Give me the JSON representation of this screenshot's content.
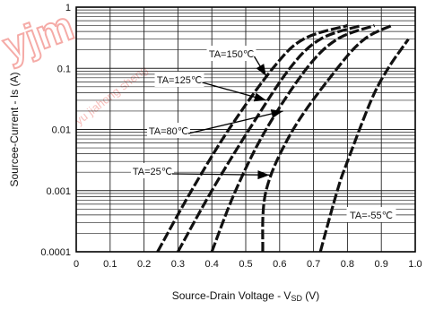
{
  "watermark": {
    "logo_text": "yjm",
    "text": "yu jiahong sheng"
  },
  "chart_data": {
    "type": "line",
    "title": "",
    "xlabel": "Source-Drain Voltage - V",
    "xlabel_sub": "SD",
    "xlabel_unit": " (V)",
    "ylabel": "Sourcee-Current - Is (A)",
    "x_scale": "linear",
    "y_scale": "log",
    "xlim": [
      0,
      1.0
    ],
    "ylim": [
      0.0001,
      1
    ],
    "x_ticks": [
      0,
      0.1,
      0.2,
      0.3,
      0.4,
      0.5,
      0.6,
      0.7,
      0.8,
      0.9,
      1.0
    ],
    "x_tick_labels": [
      "0",
      "0.1",
      "0.2",
      "0.3",
      "0.4",
      "0.5",
      "0.6",
      "0.7",
      "0.8",
      "0.9",
      "1.0"
    ],
    "y_ticks": [
      0.0001,
      0.001,
      0.01,
      0.1,
      1
    ],
    "y_tick_labels": [
      "0.0001",
      "0.001",
      "0.01",
      "0.1",
      "1"
    ],
    "grid": true,
    "line_style": "dashed",
    "series": [
      {
        "name": "TA=150℃",
        "points": [
          [
            0.24,
            0.0001
          ],
          [
            0.34,
            0.001
          ],
          [
            0.45,
            0.01
          ],
          [
            0.58,
            0.1
          ],
          [
            0.67,
            0.3
          ],
          [
            0.8,
            0.5
          ]
        ]
      },
      {
        "name": "TA=125℃",
        "points": [
          [
            0.3,
            0.0001
          ],
          [
            0.4,
            0.001
          ],
          [
            0.51,
            0.01
          ],
          [
            0.63,
            0.1
          ],
          [
            0.72,
            0.3
          ],
          [
            0.84,
            0.5
          ]
        ]
      },
      {
        "name": "TA=80℃",
        "points": [
          [
            0.4,
            0.0001
          ],
          [
            0.47,
            0.001
          ],
          [
            0.56,
            0.01
          ],
          [
            0.68,
            0.1
          ],
          [
            0.77,
            0.3
          ],
          [
            0.88,
            0.5
          ]
        ]
      },
      {
        "name": "TA=25℃",
        "points": [
          [
            0.55,
            0.0001
          ],
          [
            0.56,
            0.001
          ],
          [
            0.64,
            0.01
          ],
          [
            0.77,
            0.1
          ],
          [
            0.85,
            0.3
          ],
          [
            0.93,
            0.5
          ]
        ]
      },
      {
        "name": "TA=-55℃",
        "points": [
          [
            0.72,
            0.0001
          ],
          [
            0.77,
            0.001
          ],
          [
            0.8,
            0.003
          ],
          [
            0.87,
            0.03
          ],
          [
            0.92,
            0.1
          ],
          [
            0.98,
            0.3
          ]
        ]
      }
    ],
    "annotations": [
      {
        "text": "TA=150℃",
        "series": "TA=150℃"
      },
      {
        "text": "TA=125℃",
        "series": "TA=125℃"
      },
      {
        "text": "TA=80℃",
        "series": "TA=80℃"
      },
      {
        "text": "TA=25℃",
        "series": "TA=25℃"
      },
      {
        "text": "TA=-55℃",
        "series": "TA=-55℃"
      }
    ],
    "colors": {
      "line": "#111111",
      "grid": "#222222",
      "watermark": "#e8453c"
    }
  }
}
